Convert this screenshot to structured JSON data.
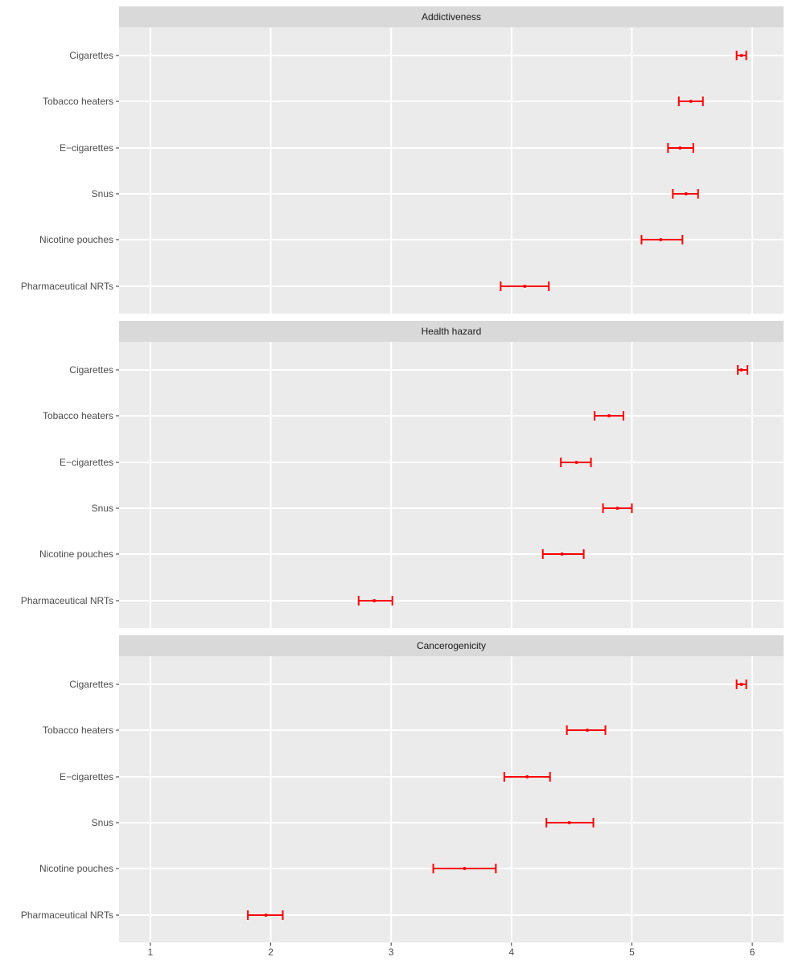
{
  "chart_data": {
    "type": "errorbar",
    "facet_layout": "vertical",
    "xlim": [
      0.74,
      6.26
    ],
    "x_ticks": [
      1,
      2,
      3,
      4,
      5,
      6
    ],
    "x_tick_labels": [
      "1",
      "2",
      "3",
      "4",
      "5",
      "6"
    ],
    "xlabel": "",
    "ylabel": "",
    "grid": true,
    "categories": [
      "Cigarettes",
      "Tobacco heaters",
      "E−cigarettes",
      "Snus",
      "Nicotine pouches",
      "Pharmaceutical NRTs"
    ],
    "colors": {
      "errorbar": "#ff0000",
      "panel_bg": "#ebebeb",
      "strip_bg": "#d9d9d9",
      "grid": "#ffffff"
    },
    "panels": [
      {
        "title": "Addictiveness",
        "mean": [
          5.91,
          5.49,
          5.4,
          5.45,
          5.24,
          4.11
        ],
        "lower": [
          5.87,
          5.39,
          5.3,
          5.34,
          5.08,
          3.91
        ],
        "upper": [
          5.95,
          5.59,
          5.51,
          5.55,
          5.42,
          4.31
        ]
      },
      {
        "title": "Health hazard",
        "mean": [
          5.91,
          4.81,
          4.54,
          4.88,
          4.42,
          2.86
        ],
        "lower": [
          5.88,
          4.69,
          4.41,
          4.76,
          4.26,
          2.73
        ],
        "upper": [
          5.96,
          4.93,
          4.66,
          5.0,
          4.6,
          3.01
        ]
      },
      {
        "title": "Cancerogenicity",
        "mean": [
          5.91,
          4.63,
          4.13,
          4.48,
          3.61,
          1.96
        ],
        "lower": [
          5.87,
          4.46,
          3.94,
          4.29,
          3.35,
          1.81
        ],
        "upper": [
          5.95,
          4.78,
          4.32,
          4.68,
          3.87,
          2.1
        ]
      }
    ]
  }
}
